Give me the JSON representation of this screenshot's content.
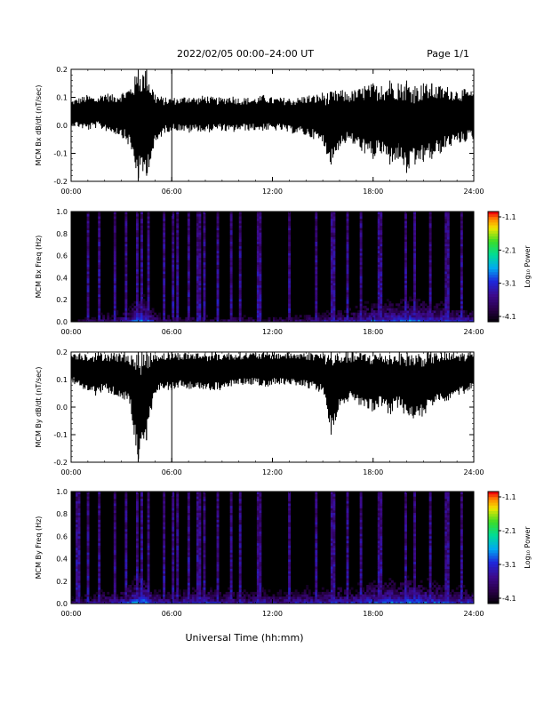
{
  "header": {
    "title": "2022/02/05  00:00–24:00 UT",
    "page": "Page 1/1"
  },
  "xlabel": "Universal Time (hh:mm)",
  "colorbar": {
    "label": "Log₁₀ Power",
    "ticks": [
      "-1.1",
      "-2.1",
      "-3.1",
      "-4.1"
    ]
  },
  "chart_data": [
    {
      "type": "line",
      "ylabel": "MCM Bx dB/dt (nT/sec)",
      "xlim": [
        0,
        24
      ],
      "ylim": [
        -0.2,
        0.2
      ],
      "xticks": [
        "00:00",
        "06:00",
        "12:00",
        "18:00",
        "24:00"
      ],
      "yticks": [
        "0.2",
        "0.1",
        "0.0",
        "-0.1",
        "-0.2"
      ],
      "x_hours": [
        0,
        0.5,
        1,
        1.5,
        2,
        2.5,
        3,
        3.5,
        4,
        4.5,
        5,
        5.5,
        6,
        6.5,
        7,
        7.5,
        8,
        8.5,
        9,
        9.5,
        10,
        10.5,
        11,
        11.5,
        12,
        12.5,
        13,
        13.5,
        14,
        14.5,
        15,
        15.5,
        16,
        16.5,
        17,
        17.5,
        18,
        18.5,
        19,
        19.5,
        20,
        20.5,
        21,
        21.5,
        22,
        22.5,
        23,
        23.5,
        24
      ],
      "envelope_max": [
        0.09,
        0.1,
        0.11,
        0.1,
        0.12,
        0.11,
        0.12,
        0.14,
        0.2,
        0.2,
        0.12,
        0.1,
        0.1,
        0.1,
        0.11,
        0.1,
        0.11,
        0.1,
        0.1,
        0.11,
        0.1,
        0.1,
        0.1,
        0.11,
        0.1,
        0.1,
        0.1,
        0.1,
        0.11,
        0.11,
        0.12,
        0.12,
        0.13,
        0.12,
        0.13,
        0.14,
        0.15,
        0.14,
        0.16,
        0.15,
        0.16,
        0.14,
        0.15,
        0.15,
        0.14,
        0.14,
        0.13,
        0.13,
        0.12
      ],
      "envelope_min": [
        0.0,
        -0.01,
        -0.02,
        -0.01,
        -0.02,
        -0.03,
        -0.04,
        -0.08,
        -0.2,
        -0.18,
        -0.08,
        -0.03,
        -0.02,
        -0.02,
        -0.03,
        -0.02,
        -0.03,
        -0.02,
        -0.02,
        -0.03,
        -0.02,
        -0.02,
        -0.02,
        -0.02,
        -0.02,
        -0.02,
        -0.03,
        -0.03,
        -0.04,
        -0.05,
        -0.07,
        -0.14,
        -0.08,
        -0.06,
        -0.08,
        -0.1,
        -0.12,
        -0.1,
        -0.14,
        -0.12,
        -0.17,
        -0.14,
        -0.13,
        -0.12,
        -0.1,
        -0.08,
        -0.07,
        -0.06,
        -0.05
      ]
    },
    {
      "type": "heatmap",
      "ylabel": "MCM Bx Freq (Hz)",
      "xlim": [
        0,
        24
      ],
      "ylim": [
        0,
        1.0
      ],
      "xticks": [
        "00:00",
        "06:00",
        "12:00",
        "18:00",
        "24:00"
      ],
      "yticks": [
        "1.0",
        "0.8",
        "0.6",
        "0.4",
        "0.2",
        "0.0"
      ],
      "color_range": [
        -4.1,
        -1.1
      ],
      "low_freq_power": [
        -3.6,
        -3.4,
        -3.3,
        -3.3,
        -3.1,
        -3.1,
        -3.0,
        -2.8,
        -2.4,
        -2.5,
        -3.0,
        -3.2,
        -3.1,
        -3.3,
        -3.2,
        -3.3,
        -3.2,
        -3.3,
        -3.3,
        -3.2,
        -3.3,
        -3.3,
        -3.3,
        -3.2,
        -3.3,
        -3.3,
        -3.2,
        -3.2,
        -3.1,
        -3.1,
        -3.0,
        -2.9,
        -2.9,
        -2.9,
        -2.8,
        -2.7,
        -2.6,
        -2.7,
        -2.5,
        -2.6,
        -2.4,
        -2.5,
        -2.5,
        -2.6,
        -2.6,
        -2.7,
        -2.8,
        -2.8,
        -2.9
      ],
      "broadband_hours": [
        1.0,
        1.7,
        2.6,
        3.3,
        3.9,
        4.2,
        4.6,
        5.5,
        6.1,
        6.3,
        7.0,
        7.6,
        7.9,
        8.7,
        9.5,
        10.1,
        11.2,
        13.0,
        14.6,
        15.6,
        16.5,
        17.3,
        18.4,
        19.9,
        20.5,
        21.4,
        22.4,
        23.3
      ]
    },
    {
      "type": "line",
      "ylabel": "MCM By dB/dt (nT/sec)",
      "xlim": [
        0,
        24
      ],
      "ylim": [
        -0.2,
        0.2
      ],
      "xticks": [
        "00:00",
        "06:00",
        "12:00",
        "18:00",
        "24:00"
      ],
      "yticks": [
        "0.2",
        "0.1",
        "0.0",
        "-0.1",
        "-0.2"
      ],
      "x_hours": [
        0,
        0.5,
        1,
        1.5,
        2,
        2.5,
        3,
        3.5,
        4,
        4.5,
        5,
        5.5,
        6,
        6.5,
        7,
        7.5,
        8,
        8.5,
        9,
        9.5,
        10,
        10.5,
        11,
        11.5,
        12,
        12.5,
        13,
        13.5,
        14,
        14.5,
        15,
        15.5,
        16,
        16.5,
        17,
        17.5,
        18,
        18.5,
        19,
        19.5,
        20,
        20.5,
        21,
        21.5,
        22,
        22.5,
        23,
        23.5,
        24
      ],
      "envelope_max": [
        0.2,
        0.2,
        0.2,
        0.2,
        0.2,
        0.2,
        0.2,
        0.2,
        0.2,
        0.2,
        0.2,
        0.2,
        0.2,
        0.2,
        0.2,
        0.2,
        0.2,
        0.2,
        0.2,
        0.2,
        0.2,
        0.2,
        0.2,
        0.2,
        0.2,
        0.2,
        0.2,
        0.2,
        0.2,
        0.2,
        0.2,
        0.2,
        0.2,
        0.2,
        0.2,
        0.2,
        0.2,
        0.2,
        0.2,
        0.2,
        0.2,
        0.2,
        0.2,
        0.2,
        0.2,
        0.2,
        0.2,
        0.2,
        0.2
      ],
      "envelope_min": [
        0.09,
        0.07,
        0.05,
        0.04,
        0.06,
        0.04,
        0.03,
        0.0,
        -0.2,
        -0.12,
        0.05,
        0.06,
        0.06,
        0.07,
        0.06,
        0.07,
        0.05,
        0.06,
        0.06,
        0.07,
        0.08,
        0.08,
        0.08,
        0.07,
        0.08,
        0.08,
        0.08,
        0.07,
        0.07,
        0.06,
        0.05,
        -0.1,
        0.0,
        0.02,
        0.01,
        0.0,
        -0.02,
        0.0,
        -0.03,
        0.0,
        -0.04,
        -0.05,
        -0.04,
        0.0,
        0.02,
        0.02,
        0.04,
        0.05,
        0.06
      ]
    },
    {
      "type": "heatmap",
      "ylabel": "MCM By Freq (Hz)",
      "xlim": [
        0,
        24
      ],
      "ylim": [
        0,
        1.0
      ],
      "xticks": [
        "00:00",
        "06:00",
        "12:00",
        "18:00",
        "24:00"
      ],
      "yticks": [
        "1.0",
        "0.8",
        "0.6",
        "0.4",
        "0.2",
        "0.0"
      ],
      "color_range": [
        -4.1,
        -1.1
      ],
      "low_freq_power": [
        -3.3,
        -3.1,
        -3.0,
        -3.0,
        -2.9,
        -2.9,
        -2.8,
        -2.6,
        -2.3,
        -2.4,
        -2.8,
        -2.9,
        -2.8,
        -2.9,
        -2.7,
        -2.8,
        -2.7,
        -2.8,
        -2.9,
        -2.8,
        -2.9,
        -2.9,
        -2.9,
        -2.8,
        -2.9,
        -2.9,
        -2.8,
        -2.8,
        -2.8,
        -2.8,
        -2.8,
        -2.7,
        -2.7,
        -2.8,
        -2.7,
        -2.6,
        -2.5,
        -2.6,
        -2.4,
        -2.5,
        -2.4,
        -2.4,
        -2.5,
        -2.5,
        -2.6,
        -2.6,
        -2.7,
        -2.7,
        -2.8
      ],
      "broadband_hours": [
        0.4,
        1.0,
        1.7,
        2.6,
        3.3,
        3.9,
        4.2,
        4.6,
        5.5,
        6.1,
        6.3,
        7.0,
        7.6,
        7.9,
        8.7,
        9.5,
        10.1,
        11.2,
        13.0,
        14.6,
        15.6,
        16.5,
        17.3,
        18.4,
        19.9,
        20.5,
        21.4,
        22.4,
        23.3
      ]
    }
  ]
}
